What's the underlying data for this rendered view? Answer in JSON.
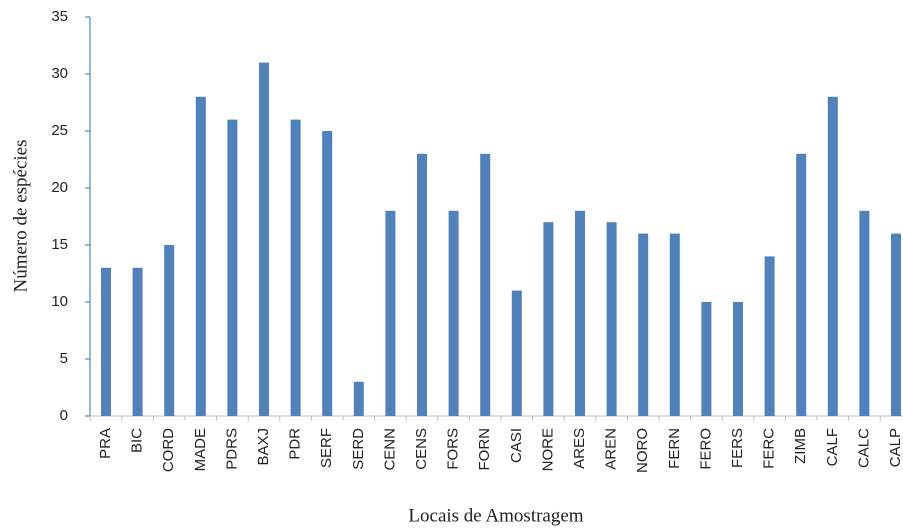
{
  "chart_data": {
    "type": "bar",
    "xlabel": "Locais de Amostragem",
    "ylabel": "Número de espécies",
    "categories": [
      "PRA",
      "BIC",
      "CORD",
      "MADE",
      "PDRS",
      "BAXJ",
      "PDR",
      "SERF",
      "SERD",
      "CENN",
      "CENS",
      "FORS",
      "FORN",
      "CASI",
      "NORE",
      "ARES",
      "AREN",
      "NORO",
      "FERN",
      "FERO",
      "FERS",
      "FERC",
      "ZIMB",
      "CALF",
      "CALC",
      "CALP"
    ],
    "values": [
      13,
      13,
      15,
      28,
      26,
      31,
      26,
      25,
      3,
      18,
      23,
      18,
      23,
      11,
      17,
      18,
      17,
      16,
      16,
      10,
      10,
      14,
      23,
      28,
      18,
      16
    ],
    "color": "#4f81bd",
    "ylim": [
      0,
      35
    ],
    "yticks": [
      0,
      5,
      10,
      15,
      20,
      25,
      30,
      35
    ],
    "grid": false
  }
}
